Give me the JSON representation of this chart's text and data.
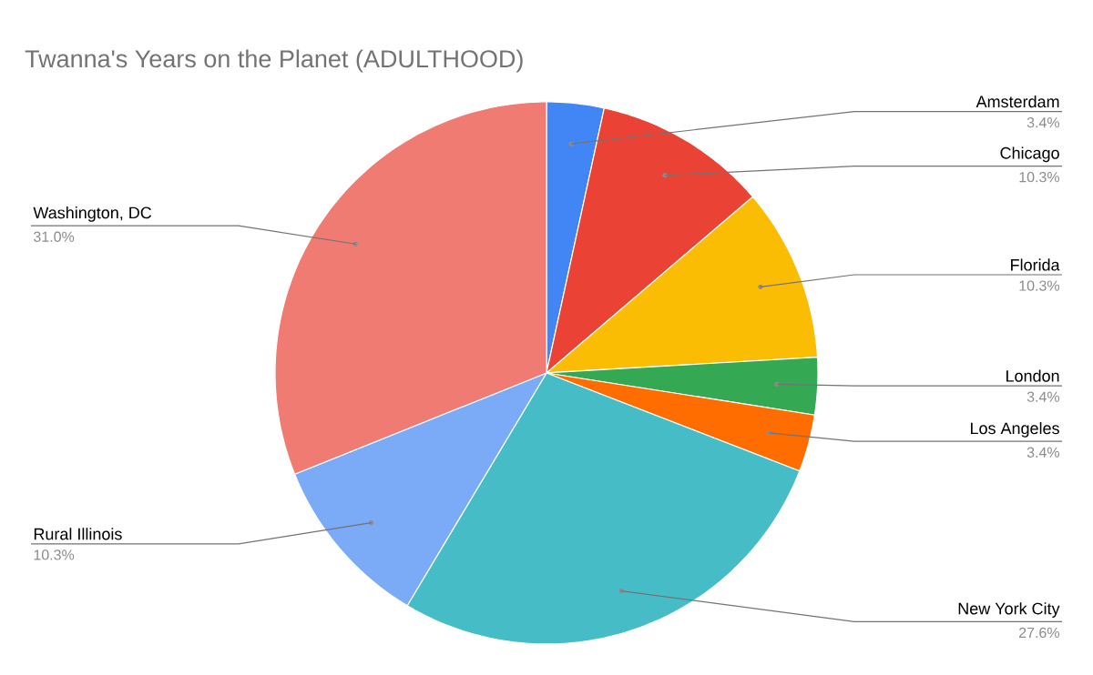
{
  "chart_data": {
    "type": "pie",
    "title": "Twanna's Years on the Planet (ADULTHOOD)",
    "categories": [
      "Amsterdam",
      "Chicago",
      "Florida",
      "London",
      "Los Angeles",
      "New York City",
      "Rural Illinois",
      "Washington, DC"
    ],
    "values": [
      3.4,
      10.3,
      10.3,
      3.4,
      3.4,
      27.6,
      10.3,
      31.0
    ],
    "value_labels": [
      "3.4%",
      "10.3%",
      "10.3%",
      "3.4%",
      "3.4%",
      "27.6%",
      "10.3%",
      "31.0%"
    ],
    "colors": [
      "#4285f4",
      "#ea4335",
      "#fbbc04",
      "#34a853",
      "#ff6d01",
      "#46bdc6",
      "#7baaf7",
      "#f07b72"
    ]
  }
}
